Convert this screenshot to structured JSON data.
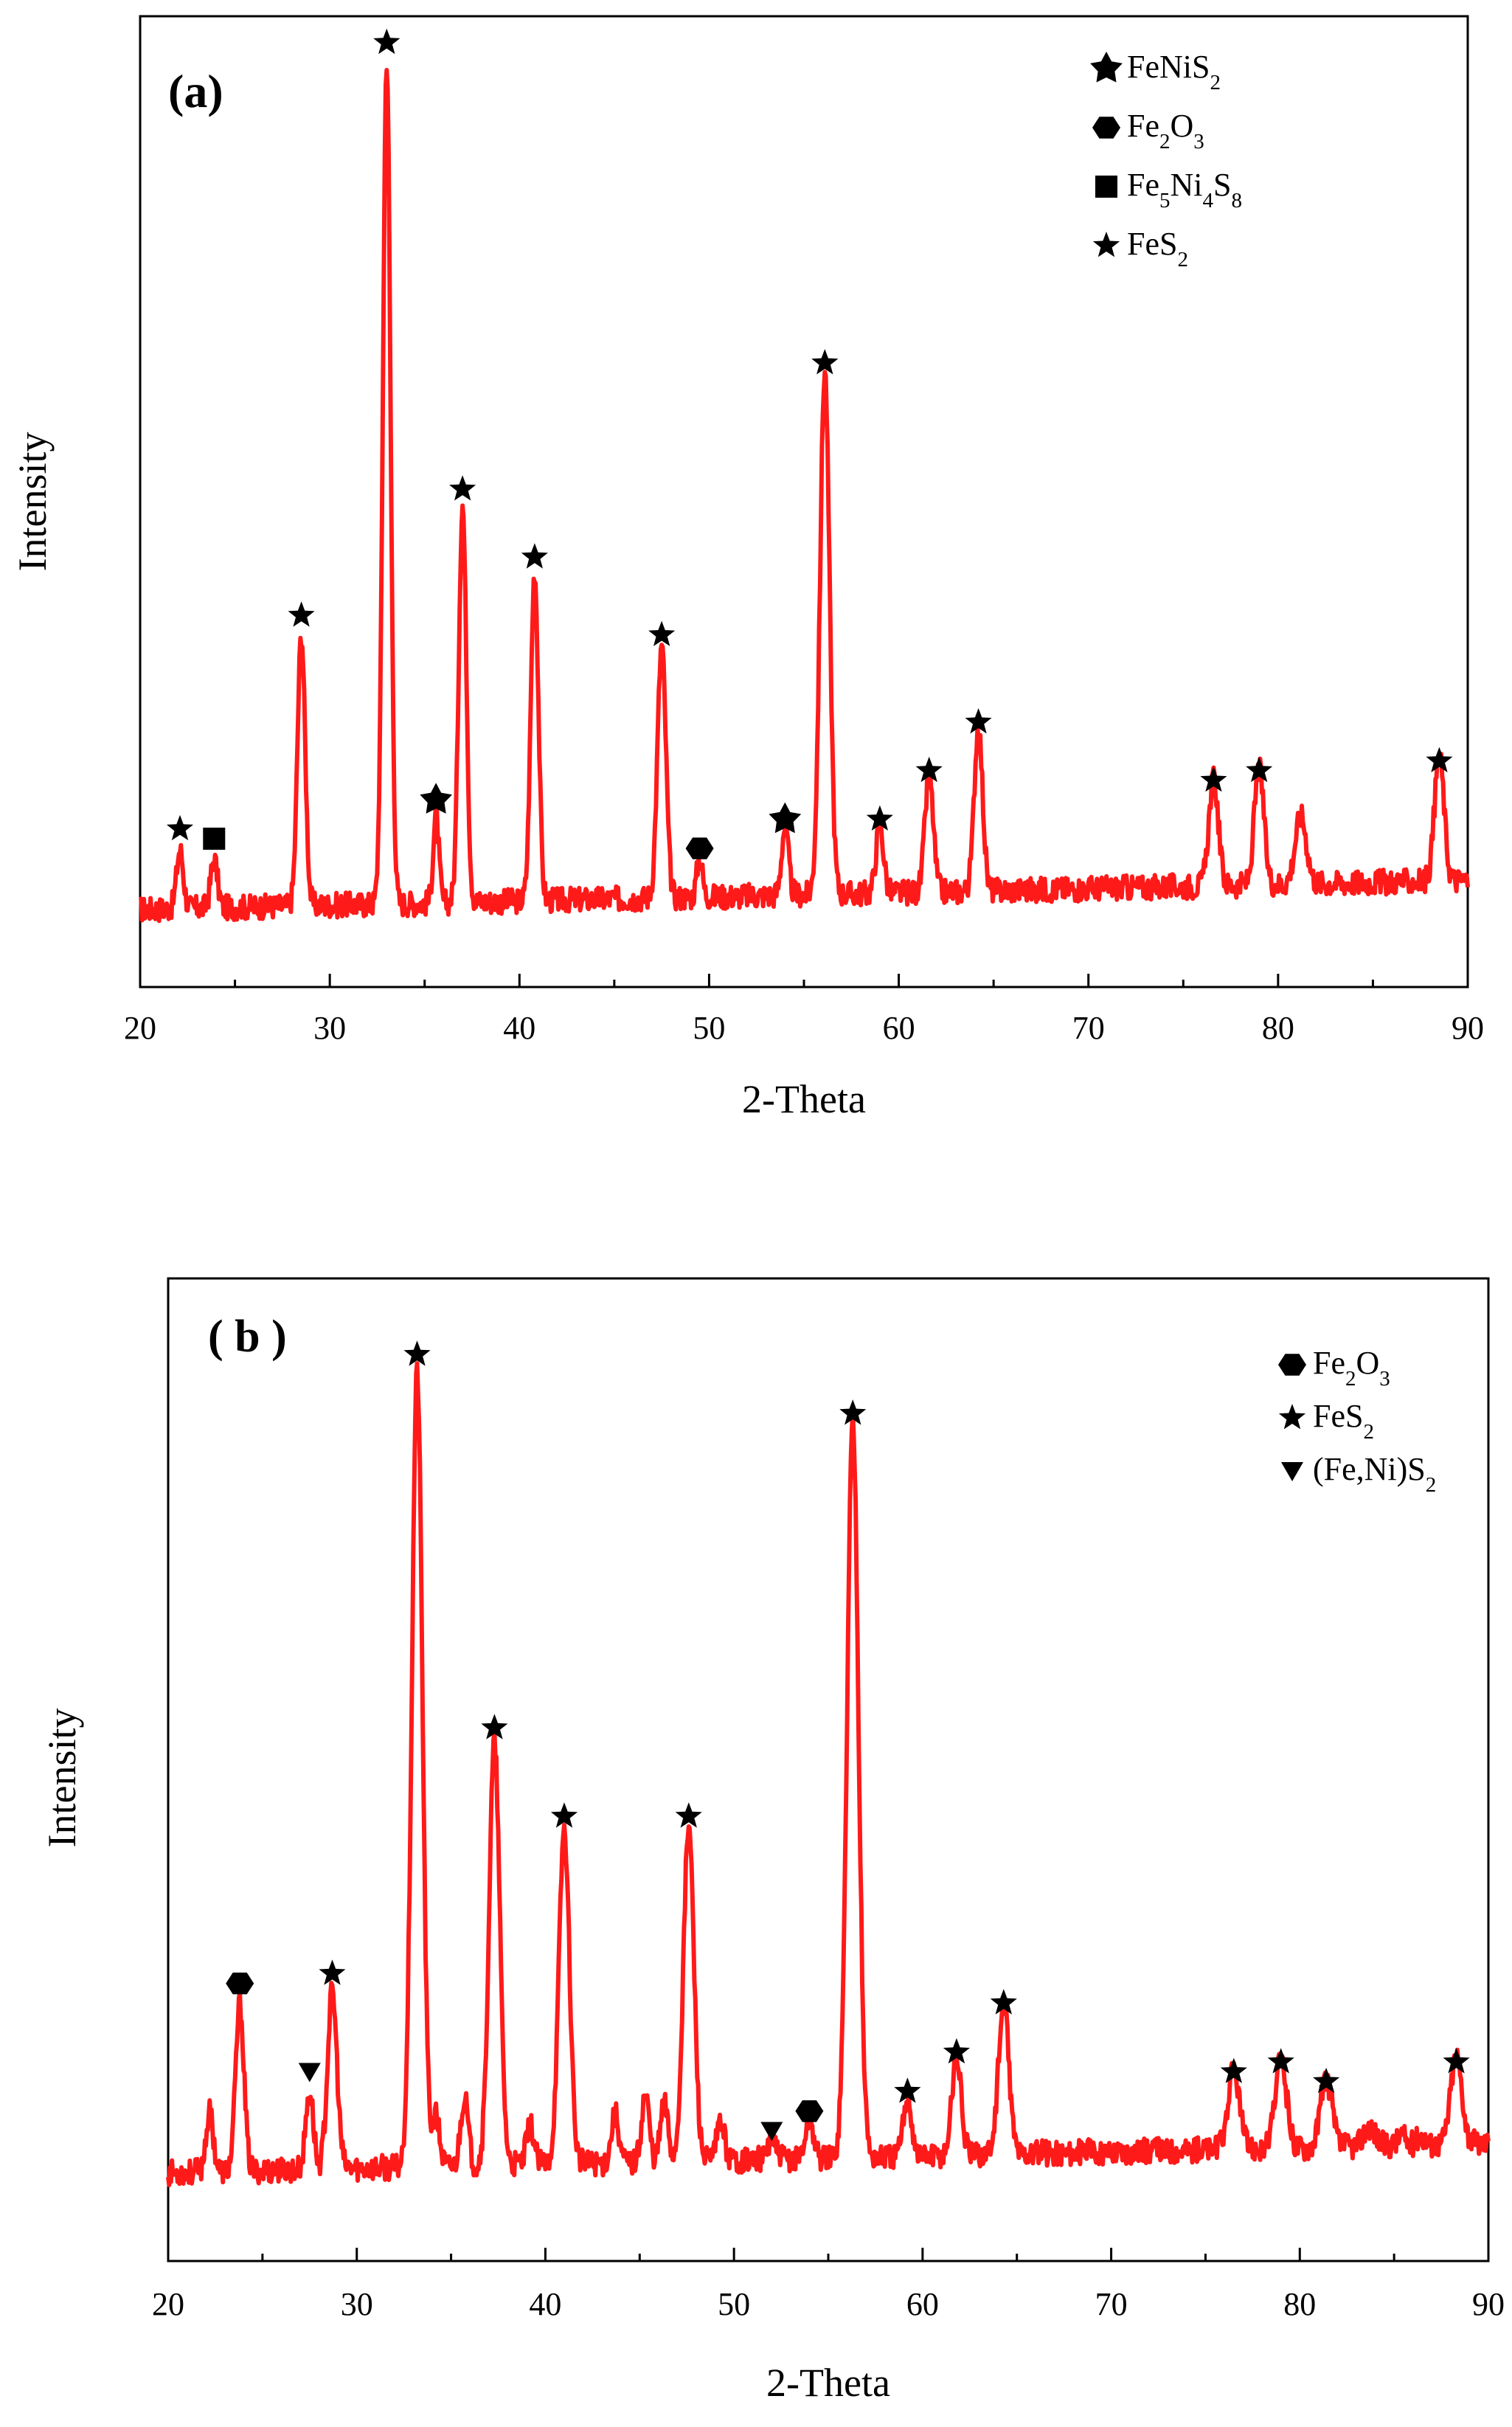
{
  "colors": {
    "trace": "#ff1a1a",
    "axis": "#000000",
    "marker": "#000000"
  },
  "chart_data": [
    {
      "type": "line",
      "panel_label": "(a)",
      "xlabel": "2-Theta",
      "ylabel": "Intensity",
      "xlim": [
        20,
        90
      ],
      "ylim": [
        0,
        100
      ],
      "xticks": [
        "20",
        "30",
        "40",
        "50",
        "60",
        "70",
        "80",
        "90"
      ],
      "baseline": 8,
      "legend": [
        {
          "marker": "big-star",
          "label": "FeNiS",
          "sub": "2"
        },
        {
          "marker": "hexagon",
          "label": "Fe",
          "sub": "2",
          "label2": "O",
          "sub2": "3"
        },
        {
          "marker": "square",
          "label": "Fe",
          "sub": "5",
          "label2": "Ni",
          "sub2": "4",
          "label3": "S",
          "sub3": "8"
        },
        {
          "marker": "star",
          "label": "FeS",
          "sub": "2"
        }
      ],
      "peaks": [
        {
          "x": 22.1,
          "y": 14,
          "w": 0.18,
          "marker": "star"
        },
        {
          "x": 23.9,
          "y": 13,
          "w": 0.18,
          "marker": "square"
        },
        {
          "x": 28.5,
          "y": 36,
          "w": 0.2,
          "marker": "star"
        },
        {
          "x": 33.0,
          "y": 95,
          "w": 0.2,
          "marker": "star"
        },
        {
          "x": 35.6,
          "y": 17,
          "w": 0.15,
          "marker": "big-star"
        },
        {
          "x": 37.0,
          "y": 49,
          "w": 0.2,
          "marker": "star"
        },
        {
          "x": 40.8,
          "y": 42,
          "w": 0.2,
          "marker": "star"
        },
        {
          "x": 47.5,
          "y": 34,
          "w": 0.22,
          "marker": "star"
        },
        {
          "x": 49.5,
          "y": 12,
          "w": 0.15,
          "marker": "hexagon"
        },
        {
          "x": 54.0,
          "y": 15,
          "w": 0.18,
          "marker": "big-star"
        },
        {
          "x": 56.1,
          "y": 62,
          "w": 0.25,
          "marker": "star"
        },
        {
          "x": 59.0,
          "y": 15,
          "w": 0.2,
          "marker": "star"
        },
        {
          "x": 61.6,
          "y": 20,
          "w": 0.22,
          "marker": "star"
        },
        {
          "x": 64.2,
          "y": 25,
          "w": 0.22,
          "marker": "star"
        },
        {
          "x": 76.6,
          "y": 19,
          "w": 0.25,
          "marker": "star"
        },
        {
          "x": 79.0,
          "y": 20,
          "w": 0.25,
          "marker": "star"
        },
        {
          "x": 81.2,
          "y": 15,
          "w": 0.3,
          "marker": null
        },
        {
          "x": 88.5,
          "y": 21,
          "w": 0.25,
          "marker": "star"
        }
      ]
    },
    {
      "type": "line",
      "panel_label": "( b )",
      "xlabel": "2-Theta",
      "ylabel": "Intensity",
      "xlim": [
        20,
        90
      ],
      "ylim": [
        0,
        100
      ],
      "xticks": [
        "20",
        "30",
        "40",
        "50",
        "60",
        "70",
        "80",
        "90"
      ],
      "baseline": 9,
      "legend": [
        {
          "marker": "hexagon",
          "label": "Fe",
          "sub": "2",
          "label2": "O",
          "sub2": "3"
        },
        {
          "marker": "star",
          "label": "FeS",
          "sub": "2"
        },
        {
          "marker": "triangle",
          "label": "(Fe,Ni)S",
          "sub": "2"
        }
      ],
      "peaks": [
        {
          "x": 22.2,
          "y": 15,
          "w": 0.2,
          "marker": null
        },
        {
          "x": 23.8,
          "y": 26,
          "w": 0.22,
          "marker": "hexagon"
        },
        {
          "x": 27.5,
          "y": 17,
          "w": 0.2,
          "marker": "triangle"
        },
        {
          "x": 28.7,
          "y": 27,
          "w": 0.25,
          "marker": "star"
        },
        {
          "x": 33.2,
          "y": 90,
          "w": 0.28,
          "marker": "star"
        },
        {
          "x": 34.2,
          "y": 14,
          "w": 0.2,
          "marker": null
        },
        {
          "x": 35.7,
          "y": 16,
          "w": 0.2,
          "marker": null
        },
        {
          "x": 37.3,
          "y": 52,
          "w": 0.28,
          "marker": "star"
        },
        {
          "x": 39.2,
          "y": 13,
          "w": 0.2,
          "marker": null
        },
        {
          "x": 41.0,
          "y": 43,
          "w": 0.28,
          "marker": "star"
        },
        {
          "x": 43.7,
          "y": 14,
          "w": 0.2,
          "marker": null
        },
        {
          "x": 45.3,
          "y": 16,
          "w": 0.2,
          "marker": null
        },
        {
          "x": 46.3,
          "y": 15,
          "w": 0.2,
          "marker": null
        },
        {
          "x": 47.6,
          "y": 43,
          "w": 0.28,
          "marker": "star"
        },
        {
          "x": 49.3,
          "y": 13,
          "w": 0.2,
          "marker": null
        },
        {
          "x": 52.0,
          "y": 11,
          "w": 0.2,
          "marker": "triangle"
        },
        {
          "x": 54.0,
          "y": 13,
          "w": 0.22,
          "marker": "hexagon"
        },
        {
          "x": 56.3,
          "y": 84,
          "w": 0.3,
          "marker": "star"
        },
        {
          "x": 59.2,
          "y": 15,
          "w": 0.22,
          "marker": "star"
        },
        {
          "x": 61.8,
          "y": 19,
          "w": 0.25,
          "marker": "star"
        },
        {
          "x": 64.3,
          "y": 24,
          "w": 0.28,
          "marker": "star"
        },
        {
          "x": 72.0,
          "y": 9,
          "w": 0.25,
          "marker": null
        },
        {
          "x": 76.5,
          "y": 17,
          "w": 0.3,
          "marker": "star"
        },
        {
          "x": 79.0,
          "y": 18,
          "w": 0.3,
          "marker": "star"
        },
        {
          "x": 81.4,
          "y": 16,
          "w": 0.3,
          "marker": "star"
        },
        {
          "x": 83.7,
          "y": 11,
          "w": 0.3,
          "marker": null
        },
        {
          "x": 85.4,
          "y": 10,
          "w": 0.2,
          "marker": null
        },
        {
          "x": 86.4,
          "y": 10,
          "w": 0.2,
          "marker": null
        },
        {
          "x": 88.3,
          "y": 18,
          "w": 0.3,
          "marker": "star"
        }
      ]
    }
  ]
}
